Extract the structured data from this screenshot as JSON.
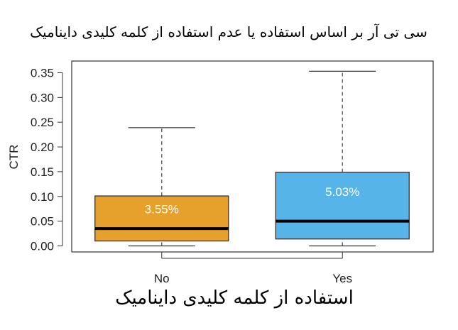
{
  "chart_data": {
    "type": "boxplot",
    "title": "سی تی آر بر اساس استفاده یا عدم استفاده از کلمه کلیدی داینامیک",
    "xlabel": "استفاده از کلمه کلیدی داینامیک",
    "ylabel": "CTR",
    "ylim": [
      0,
      0.36
    ],
    "yticks": [
      "0.00",
      "0.05",
      "0.10",
      "0.15",
      "0.20",
      "0.25",
      "0.30",
      "0.35"
    ],
    "grid": false,
    "categories": [
      "No",
      "Yes"
    ],
    "boxes": [
      {
        "category": "No",
        "min": 0.0,
        "q1": 0.01,
        "median": 0.035,
        "q3": 0.101,
        "max": 0.239,
        "label": "3.55%",
        "color": "#e6a12d"
      },
      {
        "category": "Yes",
        "min": 0.0,
        "q1": 0.014,
        "median": 0.05,
        "q3": 0.149,
        "max": 0.353,
        "label": "5.03%",
        "color": "#56b4e9"
      }
    ]
  }
}
